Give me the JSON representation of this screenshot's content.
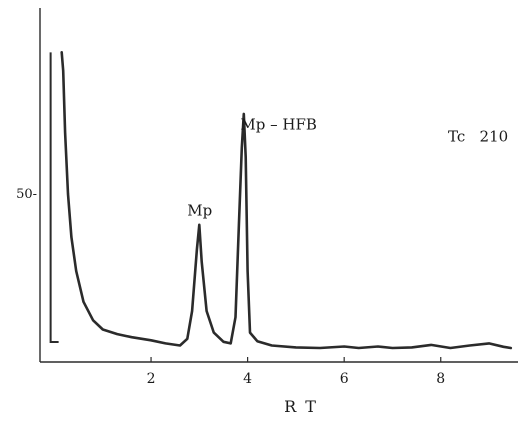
{
  "chart_data": {
    "type": "line",
    "title": "",
    "xlabel": "R T",
    "ylabel": "",
    "xlim": [
      -0.3,
      9.6
    ],
    "ylim": [
      0,
      100
    ],
    "x_ticks": [
      2,
      4,
      6,
      8
    ],
    "x_tick_labels": [
      "2",
      "4",
      "6",
      "8"
    ],
    "y_ticks": [
      50
    ],
    "y_tick_labels": [
      "50-"
    ],
    "grid": false,
    "legend": "none",
    "annotations": [
      {
        "text": "Mp",
        "x": 2.75,
        "y": 43
      },
      {
        "text": "Mp – HFB",
        "x": 3.85,
        "y": 71
      },
      {
        "text": "Tc   210",
        "x": 8.15,
        "y": 67
      }
    ],
    "injection_marker": {
      "x": -0.08,
      "y_top": 96
    },
    "series": [
      {
        "color": "#2b2b2b",
        "x": [
          0.15,
          0.18,
          0.22,
          0.28,
          0.35,
          0.45,
          0.6,
          0.8,
          1.0,
          1.3,
          1.6,
          2.0,
          2.3,
          2.6,
          2.75,
          2.85,
          2.95,
          3.0,
          3.05,
          3.15,
          3.3,
          3.5,
          3.65,
          3.75,
          3.82,
          3.88,
          3.92,
          3.96,
          4.0,
          4.05,
          4.2,
          4.5,
          5.0,
          5.5,
          6.0,
          6.3,
          6.7,
          7.0,
          7.4,
          7.8,
          8.2,
          8.6,
          9.0,
          9.3,
          9.45
        ],
        "values": [
          96,
          90,
          70,
          50,
          36,
          25,
          15,
          9,
          6,
          4.5,
          3.5,
          2.5,
          1.5,
          0.8,
          3,
          12,
          32,
          40,
          28,
          12,
          5,
          2,
          1.5,
          10,
          40,
          65,
          76,
          62,
          25,
          5,
          2.2,
          0.8,
          0.2,
          0,
          0.5,
          0,
          0.5,
          0,
          0.2,
          1.0,
          0,
          0.8,
          1.5,
          0.4,
          0
        ]
      }
    ]
  }
}
